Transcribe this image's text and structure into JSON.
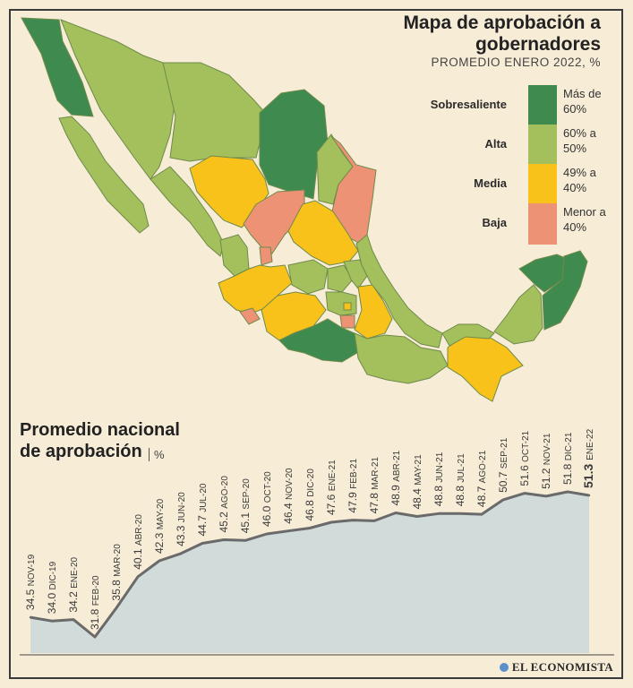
{
  "map": {
    "title": "Mapa de aprobación a gobernadores",
    "subtitle": "PROMEDIO ENERO 2022, %",
    "legend": [
      {
        "label": "Sobresaliente",
        "range": "Más de 60%",
        "color": "#3f8b4f"
      },
      {
        "label": "Alta",
        "range": "60% a 50%",
        "color": "#a3c05c"
      },
      {
        "label": "Media",
        "range": "49% a 40%",
        "color": "#f8c21a"
      },
      {
        "label": "Baja",
        "range": "Menor a 40%",
        "color": "#ee9276"
      }
    ]
  },
  "chart_data": {
    "type": "area",
    "title": "Promedio nacional de aprobación",
    "unit": "%",
    "ylim": [
      25,
      60
    ],
    "categories": [
      "NOV-19",
      "DIC-19",
      "ENE-20",
      "FEB-20",
      "MAR-20",
      "ABR-20",
      "MAY-20",
      "JUN-20",
      "JUL-20",
      "AGO-20",
      "SEP-20",
      "OCT-20",
      "NOV-20",
      "DIC-20",
      "ENE-21",
      "FEB-21",
      "MAR-21",
      "ABR-21",
      "MAY-21",
      "JUN-21",
      "JUL-21",
      "AGO-21",
      "SEP-21",
      "OCT-21",
      "NOV-21",
      "DIC-21",
      "ENE-22"
    ],
    "values": [
      34.5,
      34.0,
      34.2,
      31.8,
      35.8,
      40.1,
      42.3,
      43.3,
      44.7,
      45.2,
      45.1,
      46.0,
      46.4,
      46.8,
      47.6,
      47.9,
      47.8,
      48.9,
      48.4,
      48.8,
      48.8,
      48.7,
      50.7,
      51.6,
      51.2,
      51.8,
      51.3
    ],
    "line_color": "#6a6a6a",
    "fill_color": "#d1dbd9"
  },
  "brand": "EL ECONOMISTA"
}
